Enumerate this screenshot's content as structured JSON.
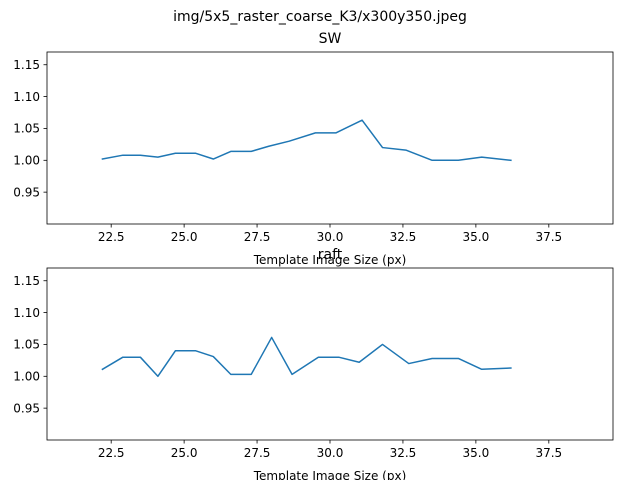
{
  "figure": {
    "suptitle": "img/5x5_raster_coarse_K3/x300y350.jpeg"
  },
  "chart_data": [
    {
      "type": "line",
      "title": "SW",
      "xlabel": "Template Image Size (px)",
      "ylabel": "",
      "xlim": [
        20.3,
        39.7
      ],
      "ylim": [
        0.9,
        1.17
      ],
      "xticks": [
        "22.5",
        "25.0",
        "27.5",
        "30.0",
        "32.5",
        "35.0",
        "37.5"
      ],
      "yticks": [
        "0.95",
        "1.00",
        "1.05",
        "1.10",
        "1.15"
      ],
      "grid": false,
      "series": [
        {
          "color": "#1f77b4",
          "x": [
            22.2,
            22.9,
            23.5,
            24.1,
            24.7,
            25.4,
            26.0,
            26.6,
            27.3,
            27.9,
            28.6,
            29.5,
            30.2,
            31.1,
            31.8,
            32.6,
            33.5,
            34.4,
            35.2,
            36.2
          ],
          "y": [
            1.002,
            1.008,
            1.008,
            1.005,
            1.011,
            1.011,
            1.002,
            1.014,
            1.014,
            1.022,
            1.03,
            1.043,
            1.043,
            1.063,
            1.02,
            1.016,
            1.0,
            1.0,
            1.005,
            1.0
          ]
        }
      ]
    },
    {
      "type": "line",
      "title": "raft",
      "xlabel": "Template Image Size (px)",
      "ylabel": "",
      "xlim": [
        20.3,
        39.7
      ],
      "ylim": [
        0.9,
        1.17
      ],
      "xticks": [
        "22.5",
        "25.0",
        "27.5",
        "30.0",
        "32.5",
        "35.0",
        "37.5"
      ],
      "yticks": [
        "0.95",
        "1.00",
        "1.05",
        "1.10",
        "1.15"
      ],
      "grid": false,
      "series": [
        {
          "color": "#1f77b4",
          "x": [
            22.2,
            22.9,
            23.5,
            24.1,
            24.7,
            25.4,
            26.0,
            26.6,
            27.3,
            28.0,
            28.7,
            29.6,
            30.3,
            31.0,
            31.8,
            32.7,
            33.5,
            34.4,
            35.2,
            36.2
          ],
          "y": [
            1.011,
            1.03,
            1.03,
            1.0,
            1.04,
            1.04,
            1.031,
            1.003,
            1.003,
            1.061,
            1.003,
            1.03,
            1.03,
            1.022,
            1.05,
            1.02,
            1.028,
            1.028,
            1.011,
            1.013
          ]
        }
      ]
    }
  ]
}
